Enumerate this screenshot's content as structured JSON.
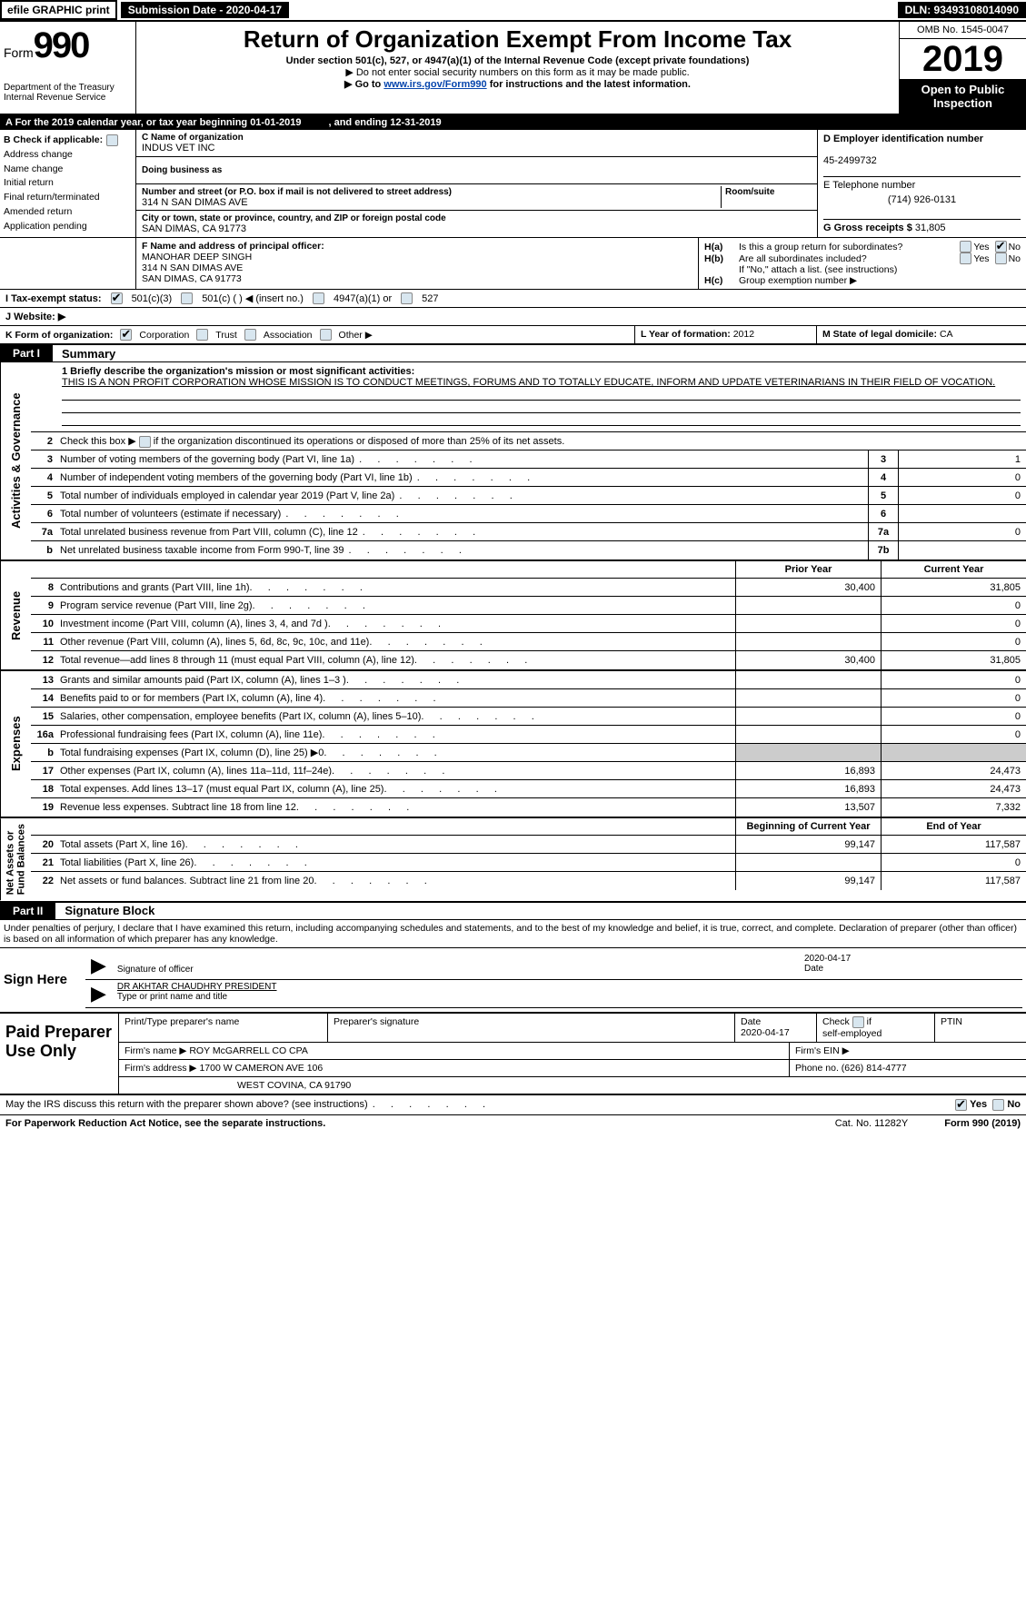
{
  "meta": {
    "efile": "efile GRAPHIC print",
    "submission_label": "Submission Date - 2020-04-17",
    "dln": "DLN: 93493108014090",
    "omb": "OMB No. 1545-0047",
    "form_prefix": "Form",
    "form_num": "990",
    "year": "2019",
    "open_pub1": "Open to Public",
    "open_pub2": "Inspection",
    "dept1": "Department of the Treasury",
    "dept2": "Internal Revenue Service",
    "title": "Return of Organization Exempt From Income Tax",
    "subtitle": "Under section 501(c), 527, or 4947(a)(1) of the Internal Revenue Code (except private foundations)",
    "note1": "▶ Do not enter social security numbers on this form as it may be made public.",
    "note2_pre": "▶ Go to ",
    "note2_link": "www.irs.gov/Form990",
    "note2_post": " for instructions and the latest information.",
    "bar_a": "A   For the 2019 calendar year, or tax year beginning 01-01-2019",
    "bar_a_end": ", and ending 12-31-2019"
  },
  "b": {
    "hdr": "B  Check if applicable:",
    "addr_change": "Address change",
    "name_change": "Name change",
    "initial": "Initial return",
    "final": "Final return/terminated",
    "amended": "Amended return",
    "pending": "Application pending"
  },
  "c": {
    "name_lbl": "C Name of organization",
    "name": "INDUS VET INC",
    "dba_lbl": "Doing business as",
    "dba": "",
    "street_lbl": "Number and street (or P.O. box if mail is not delivered to street address)",
    "room_lbl": "Room/suite",
    "street": "314 N SAN DIMAS AVE",
    "city_lbl": "City or town, state or province, country, and ZIP or foreign postal code",
    "city": "SAN DIMAS, CA  91773"
  },
  "de": {
    "ein_lbl": "D Employer identification number",
    "ein": "45-2499732",
    "tel_lbl": "E Telephone number",
    "tel": "(714) 926-0131",
    "gross_lbl": "G Gross receipts $ ",
    "gross": "31,805"
  },
  "f": {
    "lbl": "F  Name and address of principal officer:",
    "name": "MANOHAR DEEP SINGH",
    "street": "314 N SAN DIMAS AVE",
    "city": "SAN DIMAS, CA  91773"
  },
  "h": {
    "a_lbl": "H(a)",
    "a_txt": "Is this a group return for subordinates?",
    "b_lbl": "H(b)",
    "b_txt": "Are all subordinates included?",
    "b_note": "If \"No,\" attach a list. (see instructions)",
    "c_lbl": "H(c)",
    "c_txt": "Group exemption number ▶",
    "yes": "Yes",
    "no": "No"
  },
  "i": {
    "lbl": "I    Tax-exempt status:",
    "o1": "501(c)(3)",
    "o2": "501(c) (   ) ◀ (insert no.)",
    "o3": "4947(a)(1) or",
    "o4": "527"
  },
  "j": {
    "lbl": "J   Website: ▶",
    "val": ""
  },
  "k": {
    "lbl": "K Form of organization:",
    "corp": "Corporation",
    "trust": "Trust",
    "assoc": "Association",
    "other": "Other ▶"
  },
  "lm": {
    "l_lbl": "L Year of formation: ",
    "l_val": "2012",
    "m_lbl": "M State of legal domicile: ",
    "m_val": "CA"
  },
  "part1": {
    "tag": "Part I",
    "title": "Summary"
  },
  "gov": {
    "vtab": "Activities & Governance",
    "l1_lbl": "1  Briefly describe the organization's mission or most significant activities:",
    "l1_txt": "THIS IS A NON PROFIT CORPORATION WHOSE MISSION IS TO CONDUCT MEETINGS, FORUMS AND TO TOTALLY EDUCATE, INFORM AND UPDATE VETERINARIANS IN THEIR FIELD OF VOCATION.",
    "l2": "Check this box ▶        if the organization discontinued its operations or disposed of more than 25% of its net assets.",
    "rows": [
      {
        "n": "3",
        "t": "Number of voting members of the governing body (Part VI, line 1a)",
        "b": "3",
        "v": "1"
      },
      {
        "n": "4",
        "t": "Number of independent voting members of the governing body (Part VI, line 1b)",
        "b": "4",
        "v": "0"
      },
      {
        "n": "5",
        "t": "Total number of individuals employed in calendar year 2019 (Part V, line 2a)",
        "b": "5",
        "v": "0"
      },
      {
        "n": "6",
        "t": "Total number of volunteers (estimate if necessary)",
        "b": "6",
        "v": ""
      },
      {
        "n": "7a",
        "t": "Total unrelated business revenue from Part VIII, column (C), line 12",
        "b": "7a",
        "v": "0"
      },
      {
        "n": "b",
        "t": "Net unrelated business taxable income from Form 990-T, line 39",
        "b": "7b",
        "v": ""
      }
    ]
  },
  "fin_hdr": {
    "c1": "Prior Year",
    "c2": "Current Year"
  },
  "rev": {
    "vtab": "Revenue",
    "rows": [
      {
        "n": "8",
        "t": "Contributions and grants (Part VIII, line 1h)",
        "c1": "30,400",
        "c2": "31,805"
      },
      {
        "n": "9",
        "t": "Program service revenue (Part VIII, line 2g)",
        "c1": "",
        "c2": "0"
      },
      {
        "n": "10",
        "t": "Investment income (Part VIII, column (A), lines 3, 4, and 7d )",
        "c1": "",
        "c2": "0"
      },
      {
        "n": "11",
        "t": "Other revenue (Part VIII, column (A), lines 5, 6d, 8c, 9c, 10c, and 11e)",
        "c1": "",
        "c2": "0"
      },
      {
        "n": "12",
        "t": "Total revenue—add lines 8 through 11 (must equal Part VIII, column (A), line 12)",
        "c1": "30,400",
        "c2": "31,805"
      }
    ]
  },
  "exp": {
    "vtab": "Expenses",
    "rows": [
      {
        "n": "13",
        "t": "Grants and similar amounts paid (Part IX, column (A), lines 1–3 )",
        "c1": "",
        "c2": "0"
      },
      {
        "n": "14",
        "t": "Benefits paid to or for members (Part IX, column (A), line 4)",
        "c1": "",
        "c2": "0"
      },
      {
        "n": "15",
        "t": "Salaries, other compensation, employee benefits (Part IX, column (A), lines 5–10)",
        "c1": "",
        "c2": "0"
      },
      {
        "n": "16a",
        "t": "Professional fundraising fees (Part IX, column (A), line 11e)",
        "c1": "",
        "c2": "0"
      },
      {
        "n": "b",
        "t": "Total fundraising expenses (Part IX, column (D), line 25) ▶0",
        "c1": "shade",
        "c2": "shade"
      },
      {
        "n": "17",
        "t": "Other expenses (Part IX, column (A), lines 11a–11d, 11f–24e)",
        "c1": "16,893",
        "c2": "24,473"
      },
      {
        "n": "18",
        "t": "Total expenses. Add lines 13–17 (must equal Part IX, column (A), line 25)",
        "c1": "16,893",
        "c2": "24,473"
      },
      {
        "n": "19",
        "t": "Revenue less expenses. Subtract line 18 from line 12",
        "c1": "13,507",
        "c2": "7,332"
      }
    ]
  },
  "na_hdr": {
    "c1": "Beginning of Current Year",
    "c2": "End of Year"
  },
  "na": {
    "vtab": "Net Assets or\nFund Balances",
    "rows": [
      {
        "n": "20",
        "t": "Total assets (Part X, line 16)",
        "c1": "99,147",
        "c2": "117,587"
      },
      {
        "n": "21",
        "t": "Total liabilities (Part X, line 26)",
        "c1": "",
        "c2": "0"
      },
      {
        "n": "22",
        "t": "Net assets or fund balances. Subtract line 21 from line 20",
        "c1": "99,147",
        "c2": "117,587"
      }
    ]
  },
  "part2": {
    "tag": "Part II",
    "title": "Signature Block"
  },
  "perjury": "Under penalties of perjury, I declare that I have examined this return, including accompanying schedules and statements, and to the best of my knowledge and belief, it is true, correct, and complete. Declaration of preparer (other than officer) is based on all information of which preparer has any knowledge.",
  "sign": {
    "here": "Sign Here",
    "sig_lbl": "Signature of officer",
    "date": "2020-04-17",
    "date_lbl": "Date",
    "name": "DR AKHTAR CHAUDHRY  PRESIDENT",
    "name_lbl": "Type or print name and title"
  },
  "paid": {
    "label": "Paid Preparer Use Only",
    "r1": {
      "c1": "Print/Type preparer's name",
      "c2": "Preparer's signature",
      "c3_lbl": "Date",
      "c3": "2020-04-17",
      "c4": "Check        if self-employed",
      "c5": "PTIN"
    },
    "r2": {
      "c1": "Firm's name      ▶",
      "c1v": "ROY McGARRELL CO CPA",
      "c2": "Firm's EIN ▶"
    },
    "r3": {
      "c1": "Firm's address ▶",
      "c1v": "1700 W CAMERON AVE 106",
      "c2": "Phone no. (626) 814-4777"
    },
    "r4": {
      "c1": "",
      "c1v": "WEST COVINA, CA  91790"
    }
  },
  "discuss": {
    "txt": "May the IRS discuss this return with the preparer shown above? (see instructions)",
    "yes": "Yes",
    "no": "No"
  },
  "footer": {
    "pra": "For Paperwork Reduction Act Notice, see the separate instructions.",
    "cat": "Cat. No. 11282Y",
    "form": "Form 990 (2019)"
  },
  "colors": {
    "black": "#000000",
    "white": "#ffffff",
    "link": "#0645ad",
    "checkbox_bg": "#d8e6ef",
    "shade": "#cccccc"
  }
}
